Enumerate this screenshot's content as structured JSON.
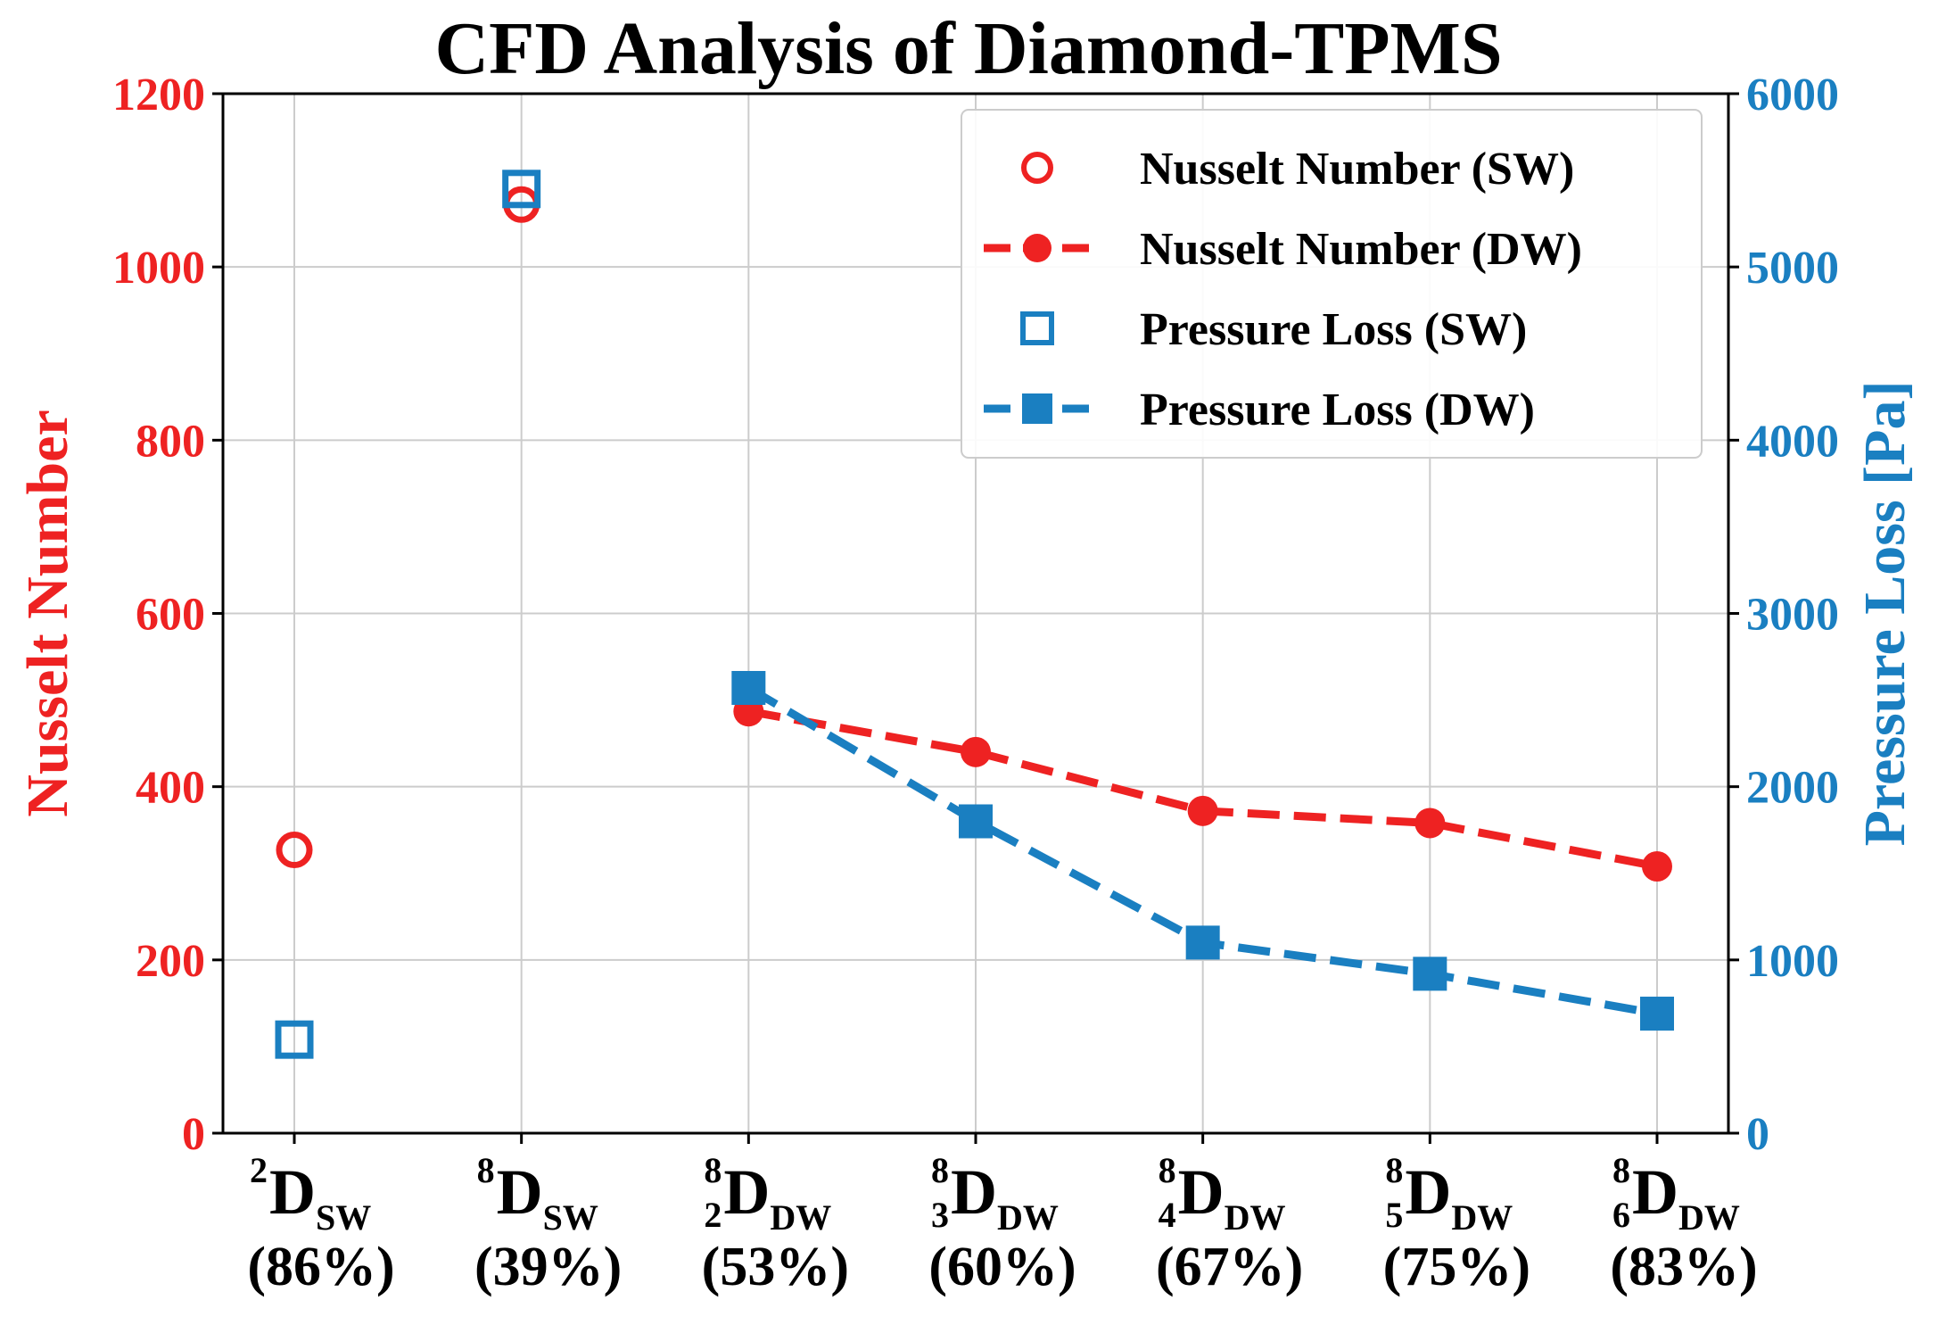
{
  "chart_data": {
    "type": "line",
    "title": "CFD Analysis of Diamond-TPMS",
    "categories": [
      {
        "base": "D",
        "sup": "2",
        "pre_sub": "",
        "sub": "SW",
        "pct": "(86%)"
      },
      {
        "base": "D",
        "sup": "8",
        "pre_sub": "",
        "sub": "SW",
        "pct": "(39%)"
      },
      {
        "base": "D",
        "sup": "8",
        "pre_sub": "2",
        "sub": "DW",
        "pct": "(53%)"
      },
      {
        "base": "D",
        "sup": "8",
        "pre_sub": "3",
        "sub": "DW",
        "pct": "(60%)"
      },
      {
        "base": "D",
        "sup": "8",
        "pre_sub": "4",
        "sub": "DW",
        "pct": "(67%)"
      },
      {
        "base": "D",
        "sup": "8",
        "pre_sub": "5",
        "sub": "DW",
        "pct": "(75%)"
      },
      {
        "base": "D",
        "sup": "8",
        "pre_sub": "6",
        "sub": "DW",
        "pct": "(83%)"
      }
    ],
    "left_axis": {
      "label": "Nusselt Number",
      "ylim": [
        0,
        1200
      ],
      "ticks": [
        "0",
        "200",
        "400",
        "600",
        "800",
        "1000",
        "1200"
      ],
      "color": "#ee2222"
    },
    "right_axis": {
      "label": "Pressure Loss [Pa]",
      "ylim": [
        0,
        6000
      ],
      "ticks": [
        "0",
        "1000",
        "2000",
        "3000",
        "4000",
        "5000",
        "6000"
      ],
      "color": "#1a7fc1"
    },
    "grid": true,
    "legend_position": "top-right",
    "series": [
      {
        "name": "Nusselt Number (SW)",
        "axis": "left",
        "style": "open-circle",
        "color": "#ee2222",
        "points": [
          {
            "x": 0,
            "y": 327
          },
          {
            "x": 1,
            "y": 1072
          }
        ]
      },
      {
        "name": "Nusselt Number (DW)",
        "axis": "left",
        "style": "dashed-filled-circle",
        "color": "#ee2222",
        "points": [
          {
            "x": 2,
            "y": 487
          },
          {
            "x": 3,
            "y": 440
          },
          {
            "x": 4,
            "y": 372
          },
          {
            "x": 5,
            "y": 358
          },
          {
            "x": 6,
            "y": 308
          }
        ]
      },
      {
        "name": "Pressure Loss (SW)",
        "axis": "right",
        "style": "open-square",
        "color": "#1a7fc1",
        "points": [
          {
            "x": 0,
            "y": 540
          },
          {
            "x": 1,
            "y": 5450
          }
        ]
      },
      {
        "name": "Pressure Loss (DW)",
        "axis": "right",
        "style": "dashed-filled-square",
        "color": "#1a7fc1",
        "points": [
          {
            "x": 2,
            "y": 2570
          },
          {
            "x": 3,
            "y": 1800
          },
          {
            "x": 4,
            "y": 1100
          },
          {
            "x": 5,
            "y": 920
          },
          {
            "x": 6,
            "y": 690
          }
        ]
      }
    ]
  }
}
